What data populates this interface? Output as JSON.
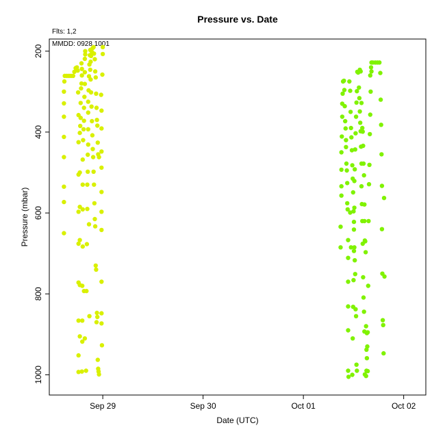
{
  "header": {
    "flts_label": "Flts: 1,2",
    "mmdd_label": "MMDD: 0928,1001"
  },
  "chart_data": {
    "type": "scatter",
    "title": "Pressure  vs. Date",
    "xlabel": "Date (UTC)",
    "ylabel": "Pressure (mbar)",
    "x_ticks": [
      "Sep 29",
      "Sep 30",
      "Oct 01",
      "Oct 02"
    ],
    "x_tick_values": [
      0,
      24,
      48,
      72
    ],
    "xlim": [
      -12.8,
      77.3
    ],
    "y_ticks": [
      200,
      400,
      600,
      800,
      1000
    ],
    "ylim": [
      1050,
      170
    ],
    "y_inverted": true,
    "grid": false,
    "series": [
      {
        "color": "#d9f000",
        "points": [
          [
            -9.3,
            650
          ],
          [
            -9.3,
            573
          ],
          [
            -9.3,
            535
          ],
          [
            -9.3,
            462
          ],
          [
            -9.3,
            412
          ],
          [
            -9.3,
            362
          ],
          [
            -9.3,
            329
          ],
          [
            -9.3,
            300
          ],
          [
            -9.2,
            275
          ],
          [
            -9.1,
            261
          ],
          [
            -8.6,
            261
          ],
          [
            -8.1,
            261
          ],
          [
            -7.6,
            261
          ],
          [
            -7.1,
            261
          ],
          [
            -6.8,
            251
          ],
          [
            -6.5,
            242
          ],
          [
            -6.2,
            240
          ],
          [
            -6.0,
            248
          ],
          [
            -5.9,
            302
          ],
          [
            -5.8,
            358
          ],
          [
            -5.8,
            425
          ],
          [
            -5.8,
            505
          ],
          [
            -5.8,
            597
          ],
          [
            -5.8,
            676
          ],
          [
            -5.8,
            772
          ],
          [
            -5.8,
            866
          ],
          [
            -5.8,
            952
          ],
          [
            -5.8,
            993
          ],
          [
            -5.5,
            500
          ],
          [
            -5.5,
            402
          ],
          [
            -5.4,
            385
          ],
          [
            -5.3,
            365
          ],
          [
            -5.3,
            328
          ],
          [
            -5.2,
            292
          ],
          [
            -5.1,
            280
          ],
          [
            -5.0,
            260
          ],
          [
            -5.0,
            244
          ],
          [
            -5.1,
            230
          ],
          [
            -5.5,
            585
          ],
          [
            -5.5,
            667
          ],
          [
            -5.5,
            778
          ],
          [
            -5.5,
            905
          ],
          [
            -5.0,
            992
          ],
          [
            -4.9,
            918
          ],
          [
            -4.9,
            866
          ],
          [
            -4.9,
            780
          ],
          [
            -4.8,
            683
          ],
          [
            -4.8,
            591
          ],
          [
            -4.8,
            530
          ],
          [
            -4.8,
            468
          ],
          [
            -4.7,
            420
          ],
          [
            -4.6,
            393
          ],
          [
            -4.5,
            372
          ],
          [
            -4.5,
            340
          ],
          [
            -4.4,
            313
          ],
          [
            -4.3,
            281
          ],
          [
            -4.3,
            252
          ],
          [
            -4.3,
            219
          ],
          [
            -4.2,
            208
          ],
          [
            -4.2,
            200
          ],
          [
            -4.5,
            793
          ],
          [
            -4.3,
            910
          ],
          [
            -4.0,
            990
          ],
          [
            -3.9,
            793
          ],
          [
            -3.8,
            677
          ],
          [
            -3.7,
            590
          ],
          [
            -3.7,
            530
          ],
          [
            -3.6,
            498
          ],
          [
            -3.6,
            456
          ],
          [
            -3.5,
            431
          ],
          [
            -3.5,
            393
          ],
          [
            -3.5,
            352
          ],
          [
            -3.5,
            325
          ],
          [
            -3.4,
            297
          ],
          [
            -3.3,
            262
          ],
          [
            -3.2,
            233
          ],
          [
            -3.1,
            210
          ],
          [
            -3.0,
            197
          ],
          [
            -3.0,
            246
          ],
          [
            -2.9,
            270
          ],
          [
            -2.8,
            302
          ],
          [
            -2.7,
            337
          ],
          [
            -2.6,
            373
          ],
          [
            -2.5,
            408
          ],
          [
            -2.4,
            442
          ],
          [
            -2.3,
            462
          ],
          [
            -2.2,
            498
          ],
          [
            -2.1,
            530
          ],
          [
            -2.0,
            576
          ],
          [
            -1.9,
            615
          ],
          [
            -1.8,
            633
          ],
          [
            -1.7,
            730
          ],
          [
            -1.6,
            740
          ],
          [
            -1.5,
            870
          ],
          [
            -1.4,
            847
          ],
          [
            -1.3,
            857
          ],
          [
            -1.2,
            963
          ],
          [
            -1.1,
            985
          ],
          [
            -1.0,
            992
          ],
          [
            -0.9,
            999
          ],
          [
            -3.3,
            628
          ],
          [
            -3.2,
            855
          ],
          [
            -2.9,
            226
          ],
          [
            -2.8,
            212
          ],
          [
            -2.6,
            202
          ],
          [
            -2.4,
            192
          ],
          [
            -2.2,
            190
          ],
          [
            -2.1,
            206
          ],
          [
            -1.9,
            220
          ],
          [
            -1.8,
            250
          ],
          [
            -1.7,
            265
          ],
          [
            -1.6,
            305
          ],
          [
            -1.5,
            340
          ],
          [
            -1.4,
            370
          ],
          [
            -1.3,
            384
          ],
          [
            -1.2,
            426
          ],
          [
            -1.1,
            455
          ],
          [
            -0.9,
            462
          ],
          [
            -0.4,
            308
          ],
          [
            -0.3,
            347
          ],
          [
            -0.3,
            391
          ],
          [
            -0.3,
            448
          ],
          [
            -0.3,
            488
          ],
          [
            -0.3,
            548
          ],
          [
            -0.3,
            597
          ],
          [
            -0.3,
            642
          ],
          [
            -0.3,
            770
          ],
          [
            -0.3,
            848
          ],
          [
            -0.3,
            873
          ],
          [
            -0.2,
            927
          ],
          [
            -0.1,
            258
          ],
          [
            0.0,
            190
          ],
          [
            0.0,
            207
          ]
        ]
      },
      {
        "color": "#80f200",
        "points": [
          [
            56.9,
            685
          ],
          [
            56.9,
            634
          ],
          [
            57.1,
            557
          ],
          [
            57.1,
            534
          ],
          [
            57.1,
            493
          ],
          [
            57.1,
            450
          ],
          [
            57.2,
            411
          ],
          [
            57.3,
            362
          ],
          [
            57.3,
            330
          ],
          [
            57.4,
            305
          ],
          [
            57.5,
            275
          ],
          [
            57.7,
            273
          ],
          [
            57.8,
            296
          ],
          [
            57.9,
            336
          ],
          [
            58.0,
            373
          ],
          [
            58.1,
            391
          ],
          [
            58.2,
            420
          ],
          [
            58.2,
            437
          ],
          [
            58.3,
            478
          ],
          [
            58.4,
            495
          ],
          [
            58.5,
            526
          ],
          [
            58.5,
            576
          ],
          [
            58.6,
            591
          ],
          [
            58.7,
            667
          ],
          [
            58.7,
            711
          ],
          [
            58.7,
            770
          ],
          [
            58.7,
            831
          ],
          [
            58.7,
            890
          ],
          [
            58.7,
            990
          ],
          [
            58.8,
            1005
          ],
          [
            59.0,
            275
          ],
          [
            59.2,
            298
          ],
          [
            59.3,
            350
          ],
          [
            59.4,
            390
          ],
          [
            59.5,
            413
          ],
          [
            59.6,
            445
          ],
          [
            59.7,
            482
          ],
          [
            59.8,
            515
          ],
          [
            59.9,
            549
          ],
          [
            60.0,
            596
          ],
          [
            60.1,
            641
          ],
          [
            60.2,
            685
          ],
          [
            60.3,
            717
          ],
          [
            60.4,
            751
          ],
          [
            60.5,
            838
          ],
          [
            60.6,
            855
          ],
          [
            60.7,
            975
          ],
          [
            60.8,
            990
          ],
          [
            59.2,
            599
          ],
          [
            59.4,
            685
          ],
          [
            59.7,
            1000
          ],
          [
            59.8,
            910
          ],
          [
            59.9,
            832
          ],
          [
            60.0,
            766
          ],
          [
            60.1,
            694
          ],
          [
            60.1,
            622
          ],
          [
            60.2,
            587
          ],
          [
            60.2,
            521
          ],
          [
            60.3,
            492
          ],
          [
            60.4,
            443
          ],
          [
            60.5,
            403
          ],
          [
            60.6,
            362
          ],
          [
            60.7,
            327
          ],
          [
            60.8,
            299
          ],
          [
            60.9,
            251
          ],
          [
            61.1,
            253
          ],
          [
            61.3,
            290
          ],
          [
            61.4,
            316
          ],
          [
            61.5,
            349
          ],
          [
            61.6,
            377
          ],
          [
            61.7,
            398
          ],
          [
            61.8,
            436
          ],
          [
            61.9,
            478
          ],
          [
            61.9,
            534
          ],
          [
            62.0,
            578
          ],
          [
            62.1,
            620
          ],
          [
            62.2,
            676
          ],
          [
            62.3,
            759
          ],
          [
            62.4,
            809
          ],
          [
            62.5,
            844
          ],
          [
            62.6,
            893
          ],
          [
            62.7,
            999
          ],
          [
            63.0,
            1003
          ],
          [
            63.1,
            990
          ],
          [
            63.2,
            959
          ],
          [
            63.4,
            895
          ],
          [
            63.5,
            780
          ],
          [
            63.6,
            620
          ],
          [
            63.7,
            529
          ],
          [
            63.8,
            481
          ],
          [
            63.9,
            405
          ],
          [
            64.0,
            357
          ],
          [
            64.1,
            300
          ],
          [
            64.2,
            240
          ],
          [
            64.3,
            228
          ],
          [
            64.6,
            228
          ],
          [
            65.2,
            228
          ],
          [
            65.7,
            228
          ],
          [
            66.2,
            228
          ],
          [
            61.5,
            246
          ],
          [
            61.7,
            250
          ],
          [
            61.9,
            328
          ],
          [
            62.1,
            390
          ],
          [
            62.2,
            399
          ],
          [
            62.3,
            434
          ],
          [
            62.4,
            478
          ],
          [
            62.5,
            507
          ],
          [
            62.6,
            579
          ],
          [
            62.6,
            620
          ],
          [
            62.7,
            668
          ],
          [
            62.8,
            670
          ],
          [
            62.9,
            697
          ],
          [
            63.0,
            880
          ],
          [
            63.1,
            938
          ],
          [
            63.2,
            897
          ],
          [
            63.3,
            930
          ],
          [
            63.4,
            991
          ],
          [
            64.0,
            260
          ],
          [
            64.3,
            250
          ],
          [
            66.4,
            254
          ],
          [
            66.5,
            320
          ],
          [
            66.6,
            382
          ],
          [
            66.7,
            455
          ],
          [
            66.8,
            533
          ],
          [
            66.8,
            640
          ],
          [
            66.9,
            750
          ],
          [
            67.0,
            865
          ],
          [
            67.1,
            877
          ],
          [
            67.2,
            947
          ],
          [
            67.3,
            563
          ],
          [
            67.4,
            757
          ]
        ]
      }
    ]
  }
}
